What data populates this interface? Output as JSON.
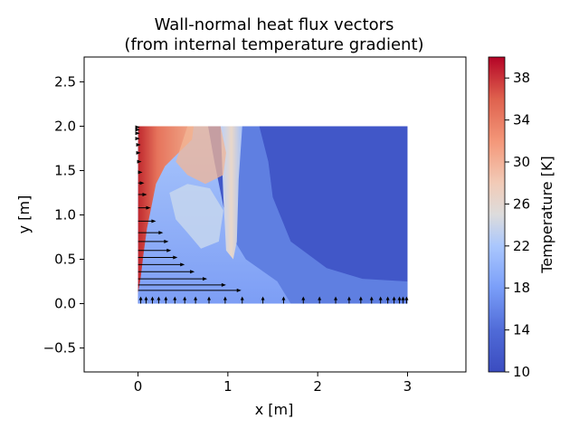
{
  "chart_data": {
    "type": "heatmap",
    "title_line1": "Wall-normal heat flux vectors",
    "title_line2": "(from internal temperature gradient)",
    "xlabel": "x [m]",
    "ylabel": "y [m]",
    "xlim": [
      -0.6,
      3.65
    ],
    "ylim": [
      -0.77,
      2.78
    ],
    "x_ticks": [
      0,
      1,
      2,
      3
    ],
    "y_ticks": [
      -0.5,
      0.0,
      0.5,
      1.0,
      1.5,
      2.0,
      2.5
    ],
    "x_tick_labels": [
      "0",
      "1",
      "2",
      "3"
    ],
    "y_tick_labels": [
      "−0.5",
      "0.0",
      "0.5",
      "1.0",
      "1.5",
      "2.0",
      "2.5"
    ],
    "domain": {
      "x": [
        0,
        3
      ],
      "y": [
        0,
        2
      ]
    },
    "colorbar": {
      "label": "Temperature [K]",
      "min": 10,
      "max": 40,
      "ticks": [
        10,
        14,
        18,
        22,
        26,
        30,
        34,
        38
      ],
      "tick_labels": [
        "10",
        "14",
        "18",
        "22",
        "26",
        "30",
        "34",
        "38"
      ],
      "colormap": "coolwarm"
    },
    "left_wall_vectors": [
      {
        "y": 0.15,
        "length": 1.15
      },
      {
        "y": 0.21,
        "length": 0.98
      },
      {
        "y": 0.28,
        "length": 0.77
      },
      {
        "y": 0.36,
        "length": 0.63
      },
      {
        "y": 0.44,
        "length": 0.52
      },
      {
        "y": 0.52,
        "length": 0.44
      },
      {
        "y": 0.6,
        "length": 0.37
      },
      {
        "y": 0.7,
        "length": 0.34
      },
      {
        "y": 0.8,
        "length": 0.28
      },
      {
        "y": 0.93,
        "length": 0.2
      },
      {
        "y": 1.08,
        "length": 0.14
      },
      {
        "y": 1.23,
        "length": 0.1
      },
      {
        "y": 1.36,
        "length": 0.07
      },
      {
        "y": 1.48,
        "length": 0.05
      },
      {
        "y": 1.6,
        "length": 0.04
      },
      {
        "y": 1.7,
        "length": 0.03
      },
      {
        "y": 1.79,
        "length": 0.03
      },
      {
        "y": 1.86,
        "length": 0.02
      },
      {
        "y": 1.92,
        "length": 0.02
      },
      {
        "y": 1.96,
        "length": 0.02
      },
      {
        "y": 1.99,
        "length": 0.02
      }
    ],
    "bottom_wall_vectors": [
      {
        "x": 0.03
      },
      {
        "x": 0.09
      },
      {
        "x": 0.16
      },
      {
        "x": 0.23
      },
      {
        "x": 0.31
      },
      {
        "x": 0.41
      },
      {
        "x": 0.52
      },
      {
        "x": 0.64
      },
      {
        "x": 0.79
      },
      {
        "x": 0.97
      },
      {
        "x": 1.16
      },
      {
        "x": 1.39
      },
      {
        "x": 1.62
      },
      {
        "x": 1.84
      },
      {
        "x": 2.02
      },
      {
        "x": 2.2
      },
      {
        "x": 2.35
      },
      {
        "x": 2.48
      },
      {
        "x": 2.6
      },
      {
        "x": 2.7
      },
      {
        "x": 2.78
      },
      {
        "x": 2.85
      },
      {
        "x": 2.91
      },
      {
        "x": 2.95
      },
      {
        "x": 2.99
      }
    ],
    "bottom_vector_length": 0.08
  }
}
